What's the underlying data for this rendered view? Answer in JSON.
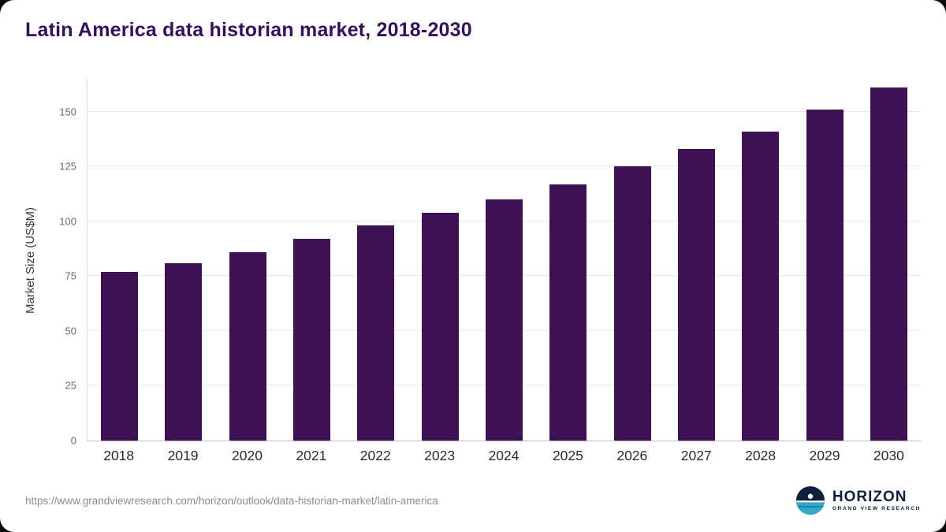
{
  "title": "Latin America data historian market, 2018-2030",
  "source_url": "https://www.grandviewresearch.com/horizon/outlook/data-historian-market/latin-america",
  "logo": {
    "name": "HORIZON",
    "subtitle": "GRAND VIEW RESEARCH"
  },
  "colors": {
    "bar": "#3d1152",
    "title": "#33105a",
    "logo_navy": "#10203c",
    "logo_teal": "#2fa9c9"
  },
  "chart_data": {
    "type": "bar",
    "title": "Latin America data historian market, 2018-2030",
    "xlabel": "",
    "ylabel": "Market Size (US$M)",
    "categories": [
      "2018",
      "2019",
      "2020",
      "2021",
      "2022",
      "2023",
      "2024",
      "2025",
      "2026",
      "2027",
      "2028",
      "2029",
      "2030"
    ],
    "values": [
      77,
      81,
      86,
      92,
      98,
      104,
      110,
      117,
      125,
      133,
      141,
      151,
      161
    ],
    "ylim": [
      0,
      165
    ],
    "yticks": [
      0,
      25,
      50,
      75,
      100,
      125,
      150
    ],
    "grid": true,
    "legend": "none",
    "bar_color": "#3d1152"
  }
}
